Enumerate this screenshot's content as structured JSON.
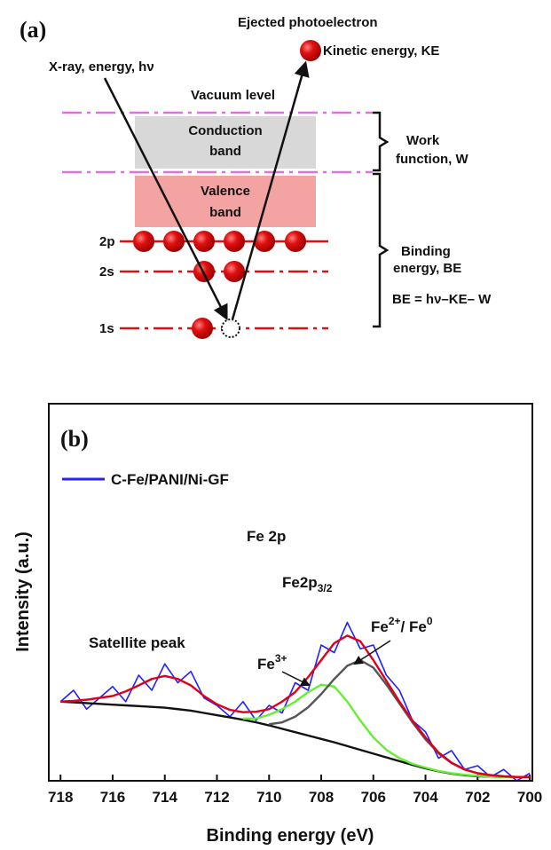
{
  "diagram": {
    "panel_label": "(a)",
    "ejected": "Ejected photoelectron",
    "kinetic": "Kinetic energy, KE",
    "xray": "X-ray, energy, hν",
    "vacuum": "Vacuum level",
    "conduction_band": [
      "Conduction",
      "band"
    ],
    "valence_band": [
      "Valence",
      "band"
    ],
    "levels": [
      "2p",
      "2s",
      "1s"
    ],
    "work_function": [
      "Work",
      "function, W"
    ],
    "binding_energy": [
      "Binding",
      "energy, BE"
    ],
    "equation": "BE = hν–KE– W"
  },
  "chart_data": {
    "type": "line",
    "panel_label": "(b)",
    "xlabel": "Binding energy (eV)",
    "ylabel": "Intensity (a.u.)",
    "xlim": [
      718.45,
      699.9
    ],
    "ylim": [
      0,
      100
    ],
    "xticks": [
      718,
      716,
      714,
      712,
      710,
      708,
      706,
      704,
      702,
      700
    ],
    "legend": "upper left",
    "annotations": [
      "Fe 2p",
      {
        "text": "Fe2p",
        "sub": "3/2"
      },
      "Satellite peak",
      {
        "text": "Fe",
        "sup": "3+"
      },
      {
        "text": "Fe",
        "sup": "2+",
        "text2": "/ Fe",
        "sup2": "0"
      }
    ],
    "x": [
      718,
      717.5,
      717,
      716.5,
      716,
      715.5,
      715,
      714.5,
      714,
      713.5,
      713,
      712.5,
      712,
      711.5,
      711,
      710.5,
      710,
      709.5,
      709,
      708.5,
      708,
      707.5,
      707,
      706.5,
      706,
      705.5,
      705,
      704.5,
      704,
      703.5,
      703,
      702.5,
      702,
      701.5,
      701,
      700.5,
      700
    ],
    "series": [
      {
        "name": "C-Fe/PANI/Ni-GF",
        "color": "#2222ff",
        "values": [
          21,
          24,
          19,
          22,
          25,
          21,
          28,
          24,
          31,
          26,
          29,
          22,
          20,
          17,
          21,
          16,
          20,
          18,
          26,
          24,
          36,
          34,
          42,
          35,
          36,
          28,
          24,
          16,
          13,
          6,
          8,
          3,
          4,
          1,
          3,
          0,
          2
        ]
      },
      {
        "color": "#111111",
        "values": [
          21,
          20.8,
          20.6,
          20.4,
          20.2,
          20,
          19.8,
          19.6,
          19.4,
          19,
          18.6,
          18,
          17.4,
          16.8,
          16.2,
          15.5,
          14.7,
          13.8,
          12.9,
          12,
          11.1,
          10.2,
          9.2,
          8.2,
          7.2,
          6.2,
          5.2,
          4.2,
          3.3,
          2.5,
          1.9,
          1.5,
          1.2,
          1.1,
          1,
          1,
          1
        ]
      },
      {
        "color": "#66ee33",
        "values": [
          null,
          null,
          null,
          null,
          null,
          null,
          null,
          null,
          null,
          null,
          null,
          null,
          null,
          null,
          16.5,
          16.5,
          17.5,
          19,
          21,
          23.5,
          25.5,
          25,
          21,
          16,
          11.5,
          8.2,
          6,
          4.5,
          3.5,
          2.6,
          2,
          1.6,
          1.3,
          1.1,
          1,
          1,
          1
        ]
      },
      {
        "color": "#555555",
        "values": [
          null,
          null,
          null,
          null,
          null,
          null,
          null,
          null,
          null,
          null,
          null,
          null,
          null,
          null,
          null,
          null,
          15,
          15.5,
          17,
          19.5,
          23,
          27,
          30.5,
          32,
          30,
          25.5,
          20.5,
          15.5,
          11,
          7.3,
          4.7,
          3,
          2,
          1.5,
          1.2,
          1,
          1
        ]
      },
      {
        "color": "#e0001a",
        "values": [
          21,
          21.2,
          21.5,
          22,
          22.5,
          23.7,
          25.3,
          27,
          27.8,
          27,
          25.3,
          22.5,
          20.3,
          18.8,
          18.2,
          18.3,
          19,
          21,
          23.5,
          27.5,
          32,
          36.5,
          38.5,
          37,
          32,
          26.5,
          21,
          16,
          11.5,
          7.5,
          4.8,
          3,
          2,
          1.5,
          1.2,
          1,
          1
        ]
      }
    ]
  }
}
